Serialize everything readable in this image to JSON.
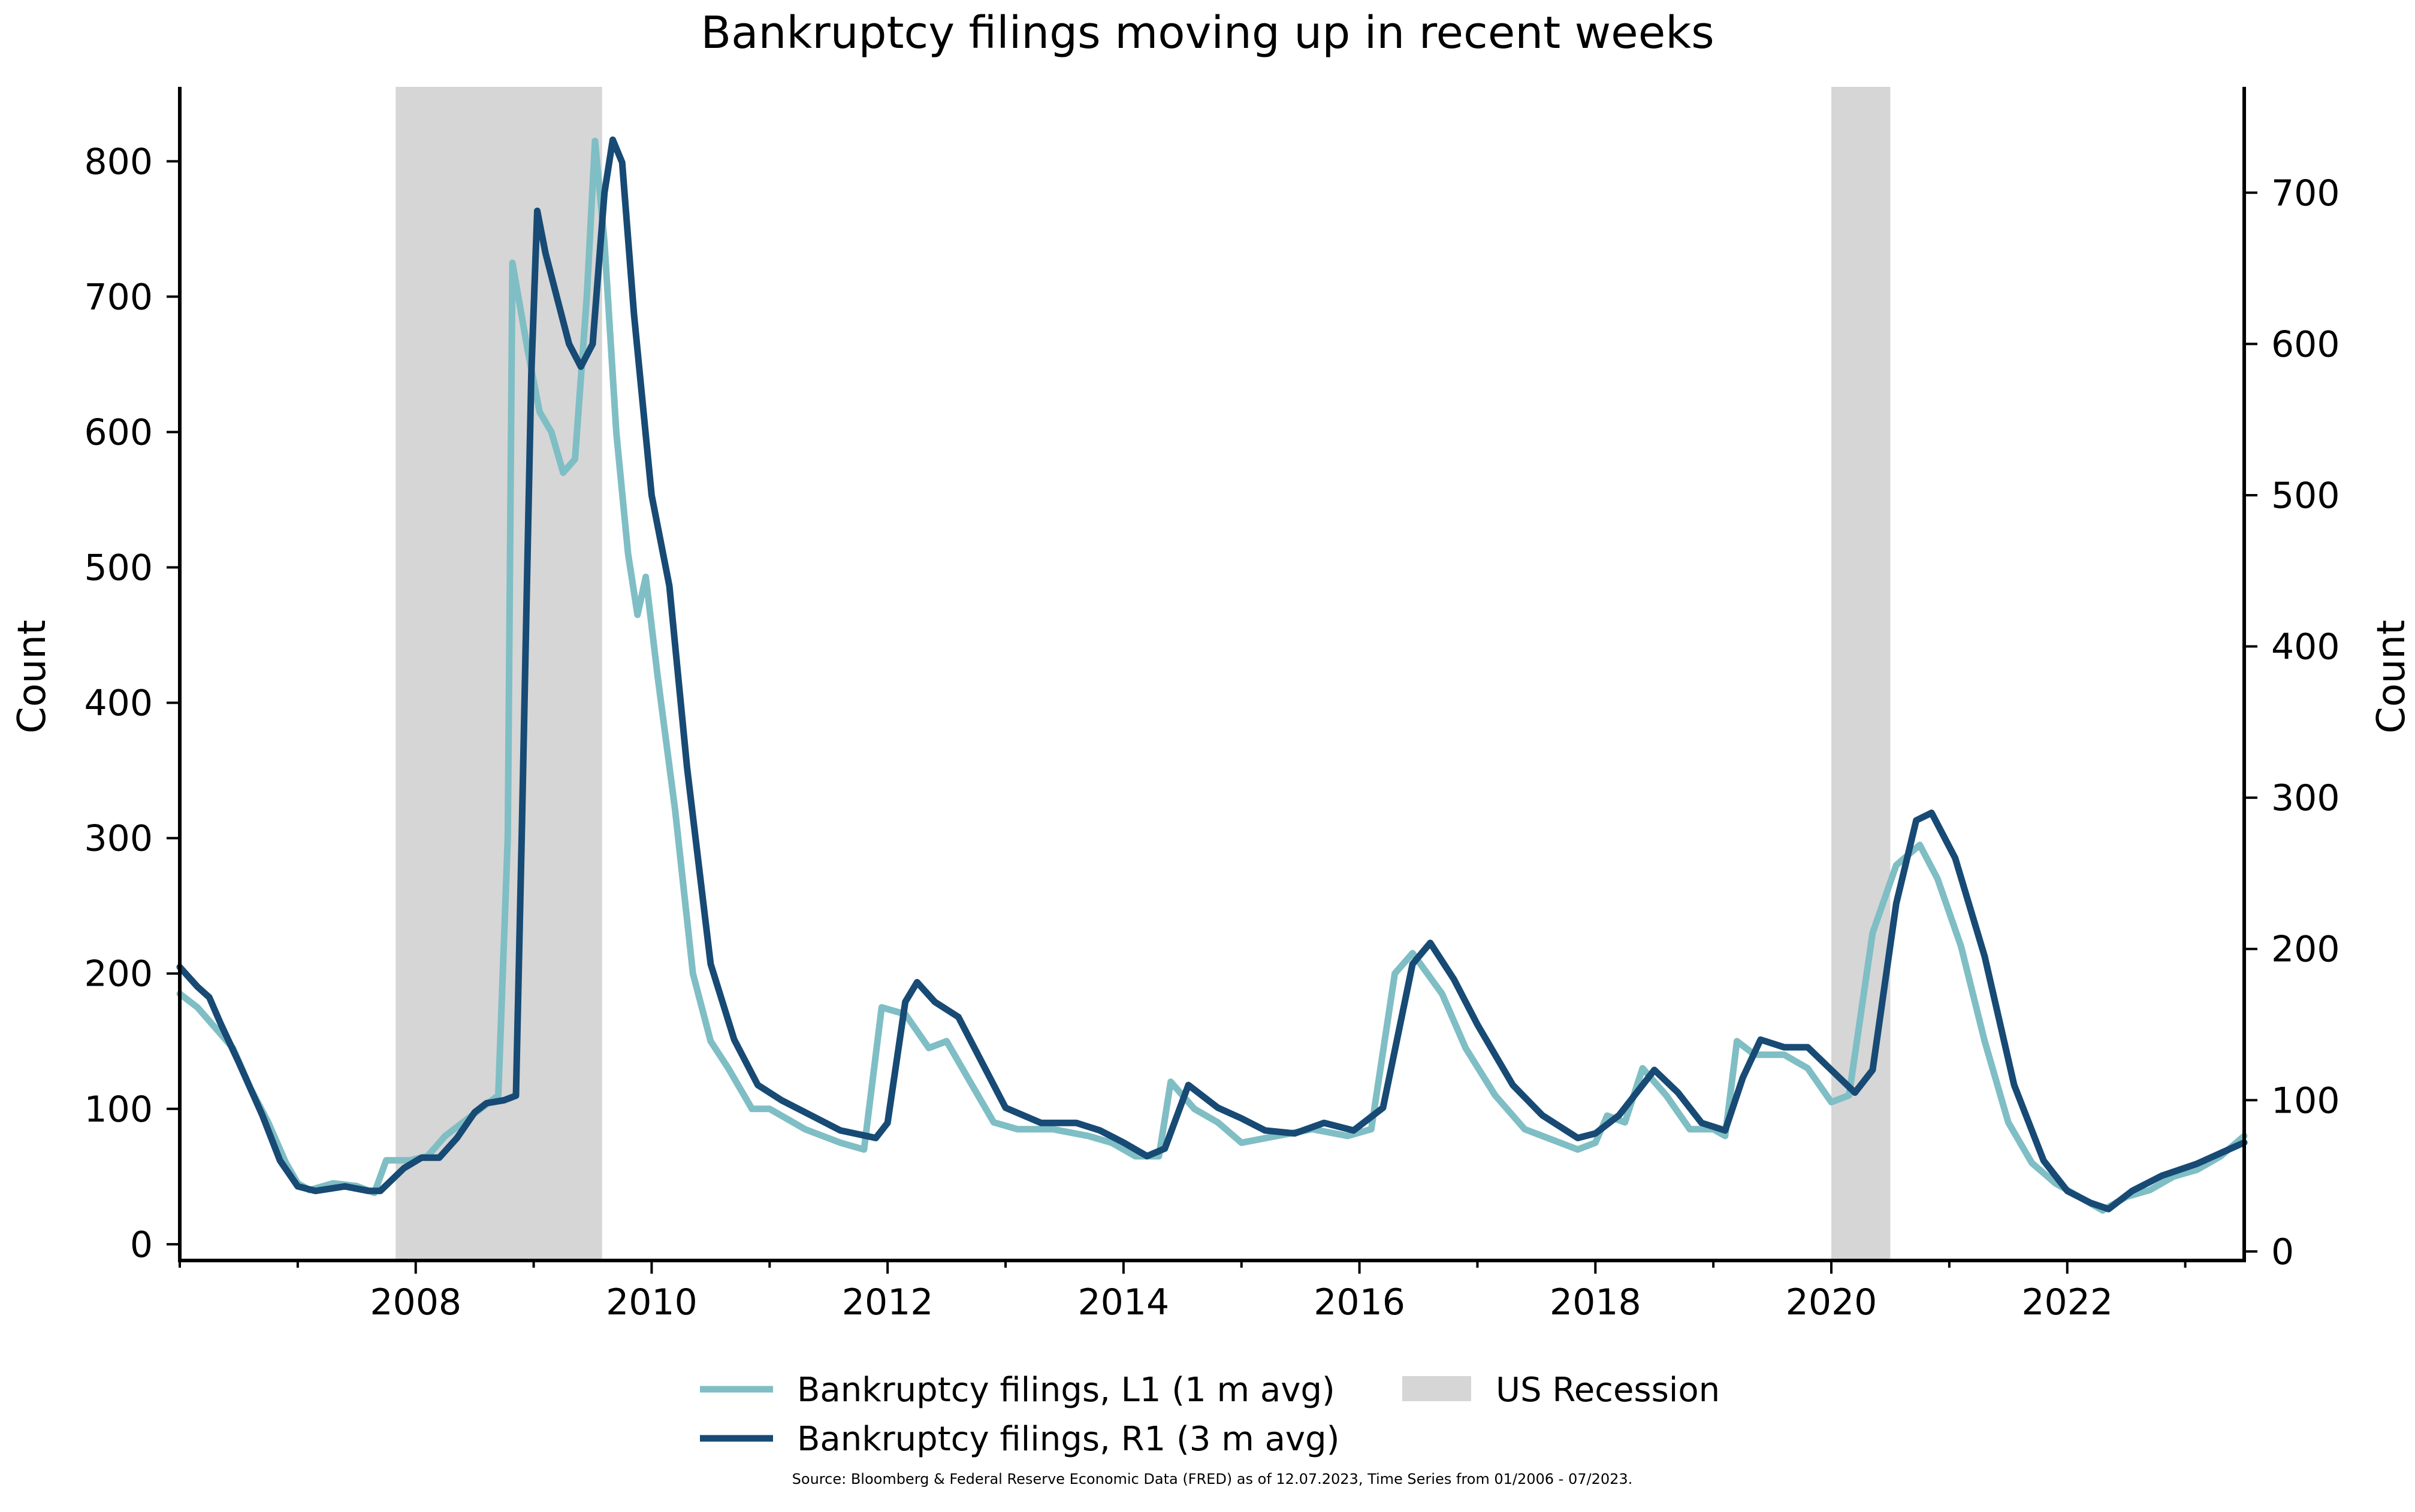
{
  "chart_data": {
    "type": "line",
    "title": "Bankruptcy filings moving up in recent weeks",
    "ylabel_left": "Count",
    "ylabel_right": "Count",
    "xlim": [
      2006.0,
      2023.5
    ],
    "ylim_left": [
      -12,
      855
    ],
    "ylim_right": [
      -6,
      770
    ],
    "y_ticks_left": [
      0,
      100,
      200,
      300,
      400,
      500,
      600,
      700,
      800
    ],
    "y_ticks_right": [
      0,
      100,
      200,
      300,
      400,
      500,
      600,
      700
    ],
    "x_ticks": [
      2008,
      2010,
      2012,
      2014,
      2016,
      2018,
      2020,
      2022
    ],
    "x_tick_labels": [
      "2008",
      "2010",
      "2012",
      "2014",
      "2016",
      "2018",
      "2020",
      "2022"
    ],
    "grid": false,
    "legend_position": "bottom-center",
    "colors": {
      "series_l1": "#7fbec4",
      "series_r1": "#174a74",
      "recession": "#d6d6d6"
    },
    "recessions": [
      {
        "name": "US Recession",
        "start": 2007.83,
        "end": 2009.58
      },
      {
        "name": "US Recession",
        "start": 2020.0,
        "end": 2020.5
      }
    ],
    "series": [
      {
        "name": "Bankruptcy filings, L1 (1 m avg)",
        "axis": "left",
        "points": [
          [
            2006.0,
            185
          ],
          [
            2006.15,
            175
          ],
          [
            2006.3,
            160
          ],
          [
            2006.45,
            145
          ],
          [
            2006.6,
            115
          ],
          [
            2006.75,
            90
          ],
          [
            2006.9,
            60
          ],
          [
            2007.0,
            45
          ],
          [
            2007.1,
            40
          ],
          [
            2007.3,
            45
          ],
          [
            2007.5,
            43
          ],
          [
            2007.65,
            38
          ],
          [
            2007.75,
            62
          ],
          [
            2007.95,
            62
          ],
          [
            2008.1,
            65
          ],
          [
            2008.25,
            80
          ],
          [
            2008.4,
            90
          ],
          [
            2008.55,
            100
          ],
          [
            2008.7,
            110
          ],
          [
            2008.78,
            300
          ],
          [
            2008.82,
            725
          ],
          [
            2008.95,
            660
          ],
          [
            2009.05,
            615
          ],
          [
            2009.15,
            600
          ],
          [
            2009.25,
            570
          ],
          [
            2009.35,
            580
          ],
          [
            2009.45,
            700
          ],
          [
            2009.52,
            815
          ],
          [
            2009.6,
            740
          ],
          [
            2009.7,
            600
          ],
          [
            2009.8,
            510
          ],
          [
            2009.88,
            465
          ],
          [
            2009.95,
            493
          ],
          [
            2010.05,
            420
          ],
          [
            2010.2,
            320
          ],
          [
            2010.35,
            200
          ],
          [
            2010.5,
            150
          ],
          [
            2010.65,
            130
          ],
          [
            2010.85,
            100
          ],
          [
            2011.0,
            100
          ],
          [
            2011.3,
            85
          ],
          [
            2011.6,
            75
          ],
          [
            2011.8,
            70
          ],
          [
            2011.95,
            175
          ],
          [
            2012.15,
            170
          ],
          [
            2012.35,
            145
          ],
          [
            2012.5,
            150
          ],
          [
            2012.7,
            120
          ],
          [
            2012.9,
            90
          ],
          [
            2013.1,
            85
          ],
          [
            2013.4,
            85
          ],
          [
            2013.7,
            80
          ],
          [
            2013.9,
            75
          ],
          [
            2014.1,
            65
          ],
          [
            2014.3,
            65
          ],
          [
            2014.4,
            120
          ],
          [
            2014.6,
            100
          ],
          [
            2014.8,
            90
          ],
          [
            2015.0,
            75
          ],
          [
            2015.3,
            80
          ],
          [
            2015.6,
            85
          ],
          [
            2015.9,
            80
          ],
          [
            2016.1,
            85
          ],
          [
            2016.3,
            200
          ],
          [
            2016.45,
            215
          ],
          [
            2016.7,
            185
          ],
          [
            2016.9,
            145
          ],
          [
            2017.15,
            110
          ],
          [
            2017.4,
            85
          ],
          [
            2017.7,
            75
          ],
          [
            2017.85,
            70
          ],
          [
            2018.0,
            75
          ],
          [
            2018.1,
            95
          ],
          [
            2018.25,
            90
          ],
          [
            2018.4,
            130
          ],
          [
            2018.6,
            110
          ],
          [
            2018.8,
            85
          ],
          [
            2019.0,
            85
          ],
          [
            2019.1,
            80
          ],
          [
            2019.2,
            150
          ],
          [
            2019.35,
            140
          ],
          [
            2019.6,
            140
          ],
          [
            2019.8,
            130
          ],
          [
            2020.0,
            105
          ],
          [
            2020.15,
            110
          ],
          [
            2020.35,
            230
          ],
          [
            2020.55,
            280
          ],
          [
            2020.75,
            295
          ],
          [
            2020.9,
            270
          ],
          [
            2021.1,
            220
          ],
          [
            2021.3,
            150
          ],
          [
            2021.5,
            90
          ],
          [
            2021.7,
            60
          ],
          [
            2021.9,
            45
          ],
          [
            2022.1,
            35
          ],
          [
            2022.3,
            25
          ],
          [
            2022.5,
            35
          ],
          [
            2022.7,
            40
          ],
          [
            2022.9,
            50
          ],
          [
            2023.1,
            55
          ],
          [
            2023.3,
            65
          ],
          [
            2023.5,
            80
          ]
        ]
      },
      {
        "name": "Bankruptcy filings, R1 (3 m avg)",
        "axis": "right",
        "points": [
          [
            2006.0,
            188
          ],
          [
            2006.15,
            175
          ],
          [
            2006.25,
            168
          ],
          [
            2006.35,
            150
          ],
          [
            2006.5,
            125
          ],
          [
            2006.7,
            90
          ],
          [
            2006.85,
            60
          ],
          [
            2007.0,
            43
          ],
          [
            2007.15,
            40
          ],
          [
            2007.4,
            43
          ],
          [
            2007.6,
            40
          ],
          [
            2007.7,
            40
          ],
          [
            2007.9,
            55
          ],
          [
            2008.05,
            62
          ],
          [
            2008.2,
            62
          ],
          [
            2008.35,
            75
          ],
          [
            2008.5,
            92
          ],
          [
            2008.6,
            98
          ],
          [
            2008.75,
            100
          ],
          [
            2008.85,
            103
          ],
          [
            2008.9,
            280
          ],
          [
            2008.98,
            580
          ],
          [
            2009.03,
            688
          ],
          [
            2009.1,
            660
          ],
          [
            2009.2,
            630
          ],
          [
            2009.3,
            600
          ],
          [
            2009.4,
            585
          ],
          [
            2009.5,
            600
          ],
          [
            2009.6,
            700
          ],
          [
            2009.67,
            735
          ],
          [
            2009.75,
            720
          ],
          [
            2009.85,
            620
          ],
          [
            2010.0,
            500
          ],
          [
            2010.15,
            440
          ],
          [
            2010.3,
            320
          ],
          [
            2010.5,
            190
          ],
          [
            2010.7,
            140
          ],
          [
            2010.9,
            110
          ],
          [
            2011.1,
            100
          ],
          [
            2011.35,
            90
          ],
          [
            2011.6,
            80
          ],
          [
            2011.9,
            75
          ],
          [
            2012.0,
            85
          ],
          [
            2012.15,
            165
          ],
          [
            2012.25,
            178
          ],
          [
            2012.4,
            165
          ],
          [
            2012.6,
            155
          ],
          [
            2012.8,
            125
          ],
          [
            2013.0,
            95
          ],
          [
            2013.3,
            85
          ],
          [
            2013.6,
            85
          ],
          [
            2013.8,
            80
          ],
          [
            2014.0,
            72
          ],
          [
            2014.2,
            63
          ],
          [
            2014.35,
            68
          ],
          [
            2014.55,
            110
          ],
          [
            2014.8,
            95
          ],
          [
            2015.0,
            88
          ],
          [
            2015.2,
            80
          ],
          [
            2015.45,
            78
          ],
          [
            2015.7,
            85
          ],
          [
            2015.95,
            80
          ],
          [
            2016.2,
            95
          ],
          [
            2016.45,
            190
          ],
          [
            2016.6,
            204
          ],
          [
            2016.8,
            180
          ],
          [
            2017.0,
            150
          ],
          [
            2017.3,
            110
          ],
          [
            2017.55,
            90
          ],
          [
            2017.85,
            75
          ],
          [
            2018.0,
            78
          ],
          [
            2018.2,
            90
          ],
          [
            2018.5,
            120
          ],
          [
            2018.7,
            105
          ],
          [
            2018.9,
            85
          ],
          [
            2019.1,
            80
          ],
          [
            2019.25,
            115
          ],
          [
            2019.4,
            140
          ],
          [
            2019.6,
            135
          ],
          [
            2019.8,
            135
          ],
          [
            2020.0,
            120
          ],
          [
            2020.2,
            105
          ],
          [
            2020.35,
            120
          ],
          [
            2020.55,
            230
          ],
          [
            2020.72,
            285
          ],
          [
            2020.85,
            290
          ],
          [
            2021.05,
            260
          ],
          [
            2021.3,
            195
          ],
          [
            2021.55,
            110
          ],
          [
            2021.8,
            60
          ],
          [
            2022.0,
            40
          ],
          [
            2022.2,
            32
          ],
          [
            2022.35,
            28
          ],
          [
            2022.55,
            40
          ],
          [
            2022.8,
            50
          ],
          [
            2023.1,
            58
          ],
          [
            2023.3,
            65
          ],
          [
            2023.5,
            72
          ]
        ]
      }
    ],
    "legend": [
      {
        "label": "Bankruptcy filings, L1 (1 m avg)",
        "kind": "line",
        "series": 0
      },
      {
        "label": "US Recession",
        "kind": "patch"
      },
      {
        "label": "Bankruptcy filings, R1 (3 m avg)",
        "kind": "line",
        "series": 1
      }
    ],
    "source": "Source: Bloomberg & Federal Reserve Economic Data (FRED) as of 12.07.2023, Time Series from 01/2006 - 07/2023."
  }
}
